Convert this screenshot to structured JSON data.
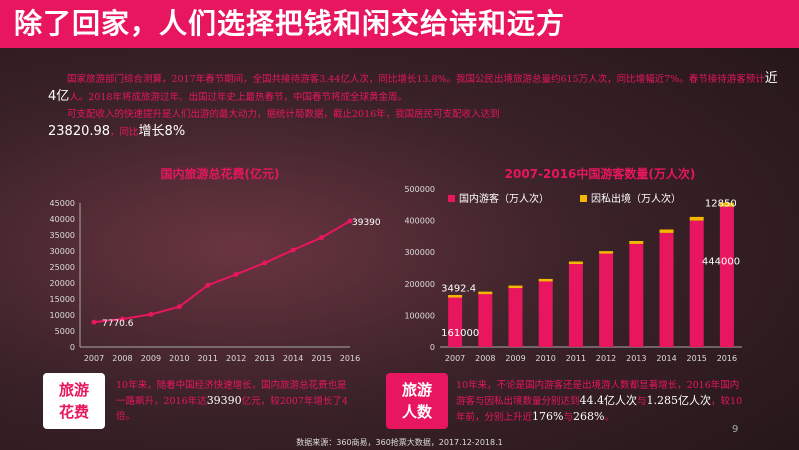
{
  "header": {
    "title": "除了回家，人们选择把钱和闲交给诗和远方"
  },
  "intro": {
    "p1a": "国家旅游部门综合测算，2017年春节期间，全国共接待游客3.44亿人次，同比增长13.8%。我国公民出境旅游总量约615万人次，同比增幅近7%。春节接待游客预计",
    "p1b": "近4亿",
    "p1c": "人。2018年将成旅游过年、出国过年史上最热春节，中国春节将成全球黄金周。",
    "p2": "可支配收入的快速提升是人们出游的最大动力，据统计局数据，截止2016年，我国居民可支配收入达到",
    "p3a": "23820.98",
    "p3b": "，同比",
    "p3c": "增长8%"
  },
  "colors": {
    "accent": "#e8165f",
    "line": "#e8165f",
    "bar_domestic": "#e8165f",
    "bar_outbound": "#f5b800"
  },
  "chart_data": [
    {
      "type": "line",
      "title": "国内旅游总花费(亿元)",
      "x": [
        "2007",
        "2008",
        "2009",
        "2010",
        "2011",
        "2012",
        "2013",
        "2014",
        "2015",
        "2016"
      ],
      "series": [
        {
          "values": [
            7770.6,
            8749,
            10184,
            12580,
            19305,
            22706,
            26276,
            30312,
            34195,
            39390
          ]
        }
      ],
      "ylim": [
        0,
        45000
      ],
      "yticks": [
        0,
        5000,
        10000,
        15000,
        20000,
        25000,
        30000,
        35000,
        40000,
        45000
      ],
      "data_labels": [
        {
          "index": 0,
          "text": "7770.6"
        },
        {
          "index": 9,
          "text": "39390"
        }
      ],
      "grid": false
    },
    {
      "type": "bar",
      "title": "2007-2016中国游客数量(万人次)",
      "categories": [
        "2007",
        "2008",
        "2009",
        "2010",
        "2011",
        "2012",
        "2013",
        "2014",
        "2015",
        "2016"
      ],
      "series": [
        {
          "name": "国内游客（万人次）",
          "values": [
            161000,
            171200,
            190200,
            210300,
            264100,
            295700,
            326200,
            361100,
            400000,
            444000
          ]
        },
        {
          "name": "因私出境（万人次）",
          "values": [
            3492.4,
            4013,
            4221,
            5151,
            6412,
            7706,
            9197,
            10728,
            11700,
            12850
          ]
        }
      ],
      "stacked": true,
      "ylim": [
        0,
        500000
      ],
      "yticks": [
        0,
        100000,
        200000,
        300000,
        400000,
        500000
      ],
      "data_labels": [
        {
          "text": "3492.4"
        },
        {
          "text": "161000"
        },
        {
          "text": "12850"
        },
        {
          "text": "444000"
        }
      ],
      "legend": "top-left"
    }
  ],
  "bottom_left": {
    "tag1": "旅游",
    "tag2": "花费",
    "t1": "10年来，随着中国经济快速增长，国内旅游总花费也是一路飙升，2016年达",
    "t2": "39390",
    "t3": "亿元，较2007年增长了4倍。"
  },
  "bottom_right": {
    "tag1": "旅游",
    "tag2": "人数",
    "t1": "10年来，不论是国内游客还是出境游人数都显著增长，2016年国内游客与因私出境数量分别达到",
    "t2": "44.4亿人次",
    "t3": "与",
    "t4": "1.285亿人次",
    "t5": "，较10年前，分别上升近",
    "t6": "176%",
    "t7": "与",
    "t8": "268%",
    "t9": "。"
  },
  "footer": "数据来源：360商易，360抢票大数据，2017.12-2018.1",
  "page_number": "9"
}
